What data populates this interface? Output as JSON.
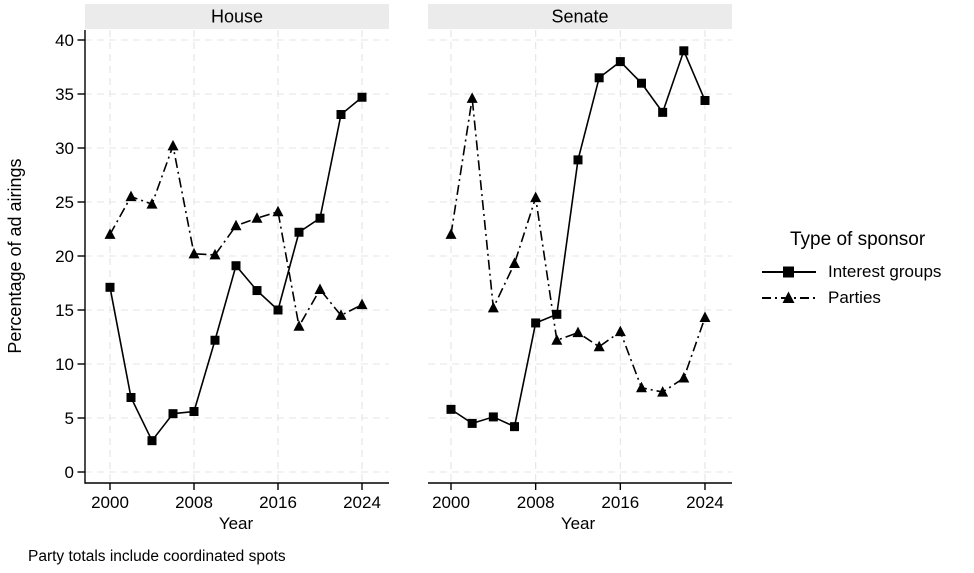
{
  "figure": {
    "ylabel": "Percentage of ad airings",
    "xlabel": "Year",
    "note": "Party totals include coordinated spots"
  },
  "legend": {
    "title": "Type of sponsor",
    "items": [
      {
        "label": "Interest groups",
        "marker": "square",
        "line": "solid"
      },
      {
        "label": "Parties",
        "marker": "triangle",
        "line": "dash-dot"
      }
    ]
  },
  "colors": {
    "line": "#000000",
    "grid": "#e4e4e4",
    "strip_bg": "#ebebeb",
    "axis": "#000000",
    "background": "#ffffff"
  },
  "chart_data": [
    {
      "type": "line",
      "title": "House",
      "xlabel": "Year",
      "ylabel": "Percentage of ad airings",
      "x": [
        2000,
        2002,
        2004,
        2006,
        2008,
        2010,
        2012,
        2014,
        2016,
        2018,
        2020,
        2022,
        2024
      ],
      "xticks": [
        2000,
        2008,
        2016,
        2024
      ],
      "ylim": [
        0,
        40
      ],
      "yticks": [
        0,
        5,
        10,
        15,
        20,
        25,
        30,
        35,
        40
      ],
      "grid": true,
      "legend_position": "right",
      "series": [
        {
          "name": "Interest groups",
          "marker": "square",
          "line_style": "solid",
          "values": [
            17.1,
            6.9,
            2.9,
            5.4,
            5.6,
            12.2,
            19.1,
            16.8,
            15.0,
            22.2,
            23.5,
            33.1,
            34.7
          ]
        },
        {
          "name": "Parties",
          "marker": "triangle",
          "line_style": "dash-dot",
          "values": [
            22.0,
            25.5,
            24.8,
            30.2,
            20.2,
            20.1,
            22.8,
            23.5,
            24.1,
            13.5,
            16.9,
            14.5,
            15.5
          ]
        }
      ]
    },
    {
      "type": "line",
      "title": "Senate",
      "xlabel": "Year",
      "ylabel": "Percentage of ad airings",
      "x": [
        2000,
        2002,
        2004,
        2006,
        2008,
        2010,
        2012,
        2014,
        2016,
        2018,
        2020,
        2022,
        2024
      ],
      "xticks": [
        2000,
        2008,
        2016,
        2024
      ],
      "ylim": [
        0,
        40
      ],
      "yticks": [
        0,
        5,
        10,
        15,
        20,
        25,
        30,
        35,
        40
      ],
      "grid": true,
      "legend_position": "right",
      "series": [
        {
          "name": "Interest groups",
          "marker": "square",
          "line_style": "solid",
          "values": [
            5.8,
            4.5,
            5.1,
            4.2,
            13.8,
            14.6,
            28.9,
            36.5,
            38.0,
            36.0,
            33.3,
            39.0,
            34.4
          ]
        },
        {
          "name": "Parties",
          "marker": "triangle",
          "line_style": "dash-dot",
          "values": [
            22.0,
            34.6,
            15.2,
            19.3,
            25.4,
            12.2,
            12.9,
            11.6,
            13.0,
            7.8,
            7.4,
            8.7,
            14.3
          ]
        }
      ]
    }
  ]
}
